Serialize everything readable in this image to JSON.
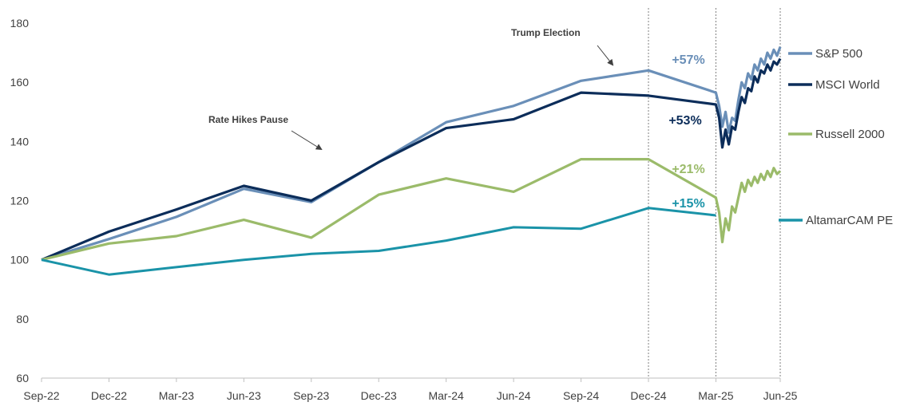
{
  "chart_data": {
    "type": "line",
    "title": "",
    "xlabel": "",
    "ylabel": "",
    "ylim": [
      60,
      180
    ],
    "y_ticks": [
      60,
      80,
      100,
      120,
      140,
      160,
      180
    ],
    "x_tick_labels": [
      "Sep-22",
      "Dec-22",
      "Mar-23",
      "Jun-23",
      "Sep-23",
      "Dec-23",
      "Mar-24",
      "Jun-24",
      "Sep-24",
      "Dec-24",
      "Mar-25",
      "Jun-25"
    ],
    "grid": false,
    "legend_position": "right",
    "vertical_markers": [
      "Dec-24",
      "Mar-25",
      "Jun-25"
    ],
    "annotations": [
      {
        "text": "Rate Hikes Pause",
        "near": "Jun-23 to Sep-23"
      },
      {
        "text": "Trump Election",
        "near": "Sep-24 to Dec-24"
      }
    ],
    "quarterly_x": [
      "Sep-22",
      "Dec-22",
      "Mar-23",
      "Jun-23",
      "Sep-23",
      "Dec-23",
      "Mar-24",
      "Jun-24",
      "Sep-24",
      "Dec-24",
      "Mar-25"
    ],
    "series": [
      {
        "name": "S&P 500",
        "color": "#6a8fb8",
        "change_label": "+57%",
        "values": [
          100,
          107,
          114.5,
          124,
          119.5,
          133,
          146.5,
          152,
          160.5,
          164,
          156.5
        ],
        "daily_after_mar25": [
          156.5,
          152,
          145,
          150,
          143,
          148,
          147,
          154,
          160,
          158,
          163,
          161,
          166,
          164,
          168,
          166,
          170,
          168,
          171,
          169,
          172
        ]
      },
      {
        "name": "MSCI World",
        "color": "#0c2d5a",
        "change_label": "+53%",
        "values": [
          100,
          109.5,
          117,
          125,
          120,
          133,
          144.5,
          147.5,
          156.5,
          155.5,
          152.5
        ],
        "daily_after_mar25": [
          152.5,
          148,
          138,
          144,
          139,
          145,
          144,
          150,
          155,
          153,
          158,
          157,
          162,
          160,
          164,
          163,
          166,
          164,
          167,
          166,
          168
        ]
      },
      {
        "name": "Russell 2000",
        "color": "#9bbb6a",
        "change_label": "+21%",
        "values": [
          100,
          105.5,
          108,
          113.5,
          107.5,
          122,
          127.5,
          123,
          134,
          134,
          121
        ],
        "daily_after_mar25": [
          121,
          116,
          106,
          114,
          110,
          118,
          116,
          121,
          126,
          123,
          127,
          125,
          128,
          126,
          129,
          127,
          130,
          128,
          131,
          129,
          130
        ]
      },
      {
        "name": "AltamarCAM PE",
        "color": "#1a93a8",
        "change_label": "+15%",
        "values": [
          100,
          95,
          97.5,
          100,
          102,
          103,
          106.5,
          111,
          110.5,
          117.5,
          115
        ],
        "daily_after_mar25": []
      }
    ]
  }
}
